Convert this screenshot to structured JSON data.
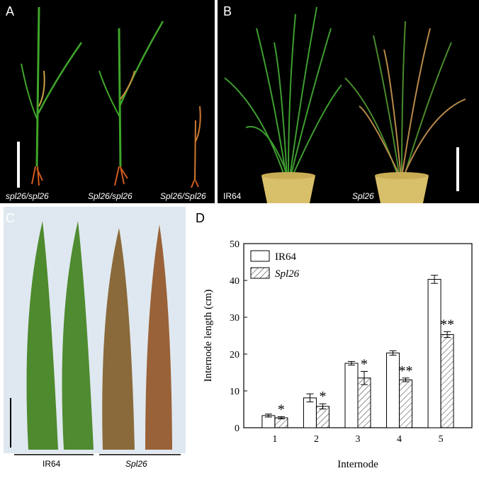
{
  "panels": {
    "A": {
      "letter": "A",
      "genotypes": [
        "spl26/spl26",
        "Spl26/spl26",
        "Spl26/Spl26"
      ]
    },
    "B": {
      "letter": "B",
      "labels": [
        "IR64",
        "Spl26"
      ]
    },
    "C": {
      "letter": "C",
      "labels": [
        "IR64",
        "Spl26"
      ]
    },
    "D": {
      "letter": "D"
    }
  },
  "chart_data": {
    "type": "bar",
    "xlabel": "Internode",
    "ylabel": "Internode length (cm)",
    "categories": [
      "1",
      "2",
      "3",
      "4",
      "5"
    ],
    "ylim": [
      0,
      50
    ],
    "yticks": [
      0,
      10,
      20,
      30,
      40,
      50
    ],
    "legend_position": "top-left",
    "series": [
      {
        "name": "IR64",
        "values": [
          3.3,
          8.1,
          17.5,
          20.3,
          40.3
        ],
        "errors": [
          0.4,
          1.1,
          0.5,
          0.6,
          1.1
        ],
        "fill": "white"
      },
      {
        "name": "Spl26",
        "values": [
          2.7,
          5.8,
          13.5,
          13.0,
          25.3
        ],
        "errors": [
          0.3,
          0.7,
          1.8,
          0.5,
          0.8
        ],
        "fill": "hatched"
      }
    ],
    "annotations": [
      "*",
      "*",
      "*",
      "**",
      "**"
    ]
  }
}
